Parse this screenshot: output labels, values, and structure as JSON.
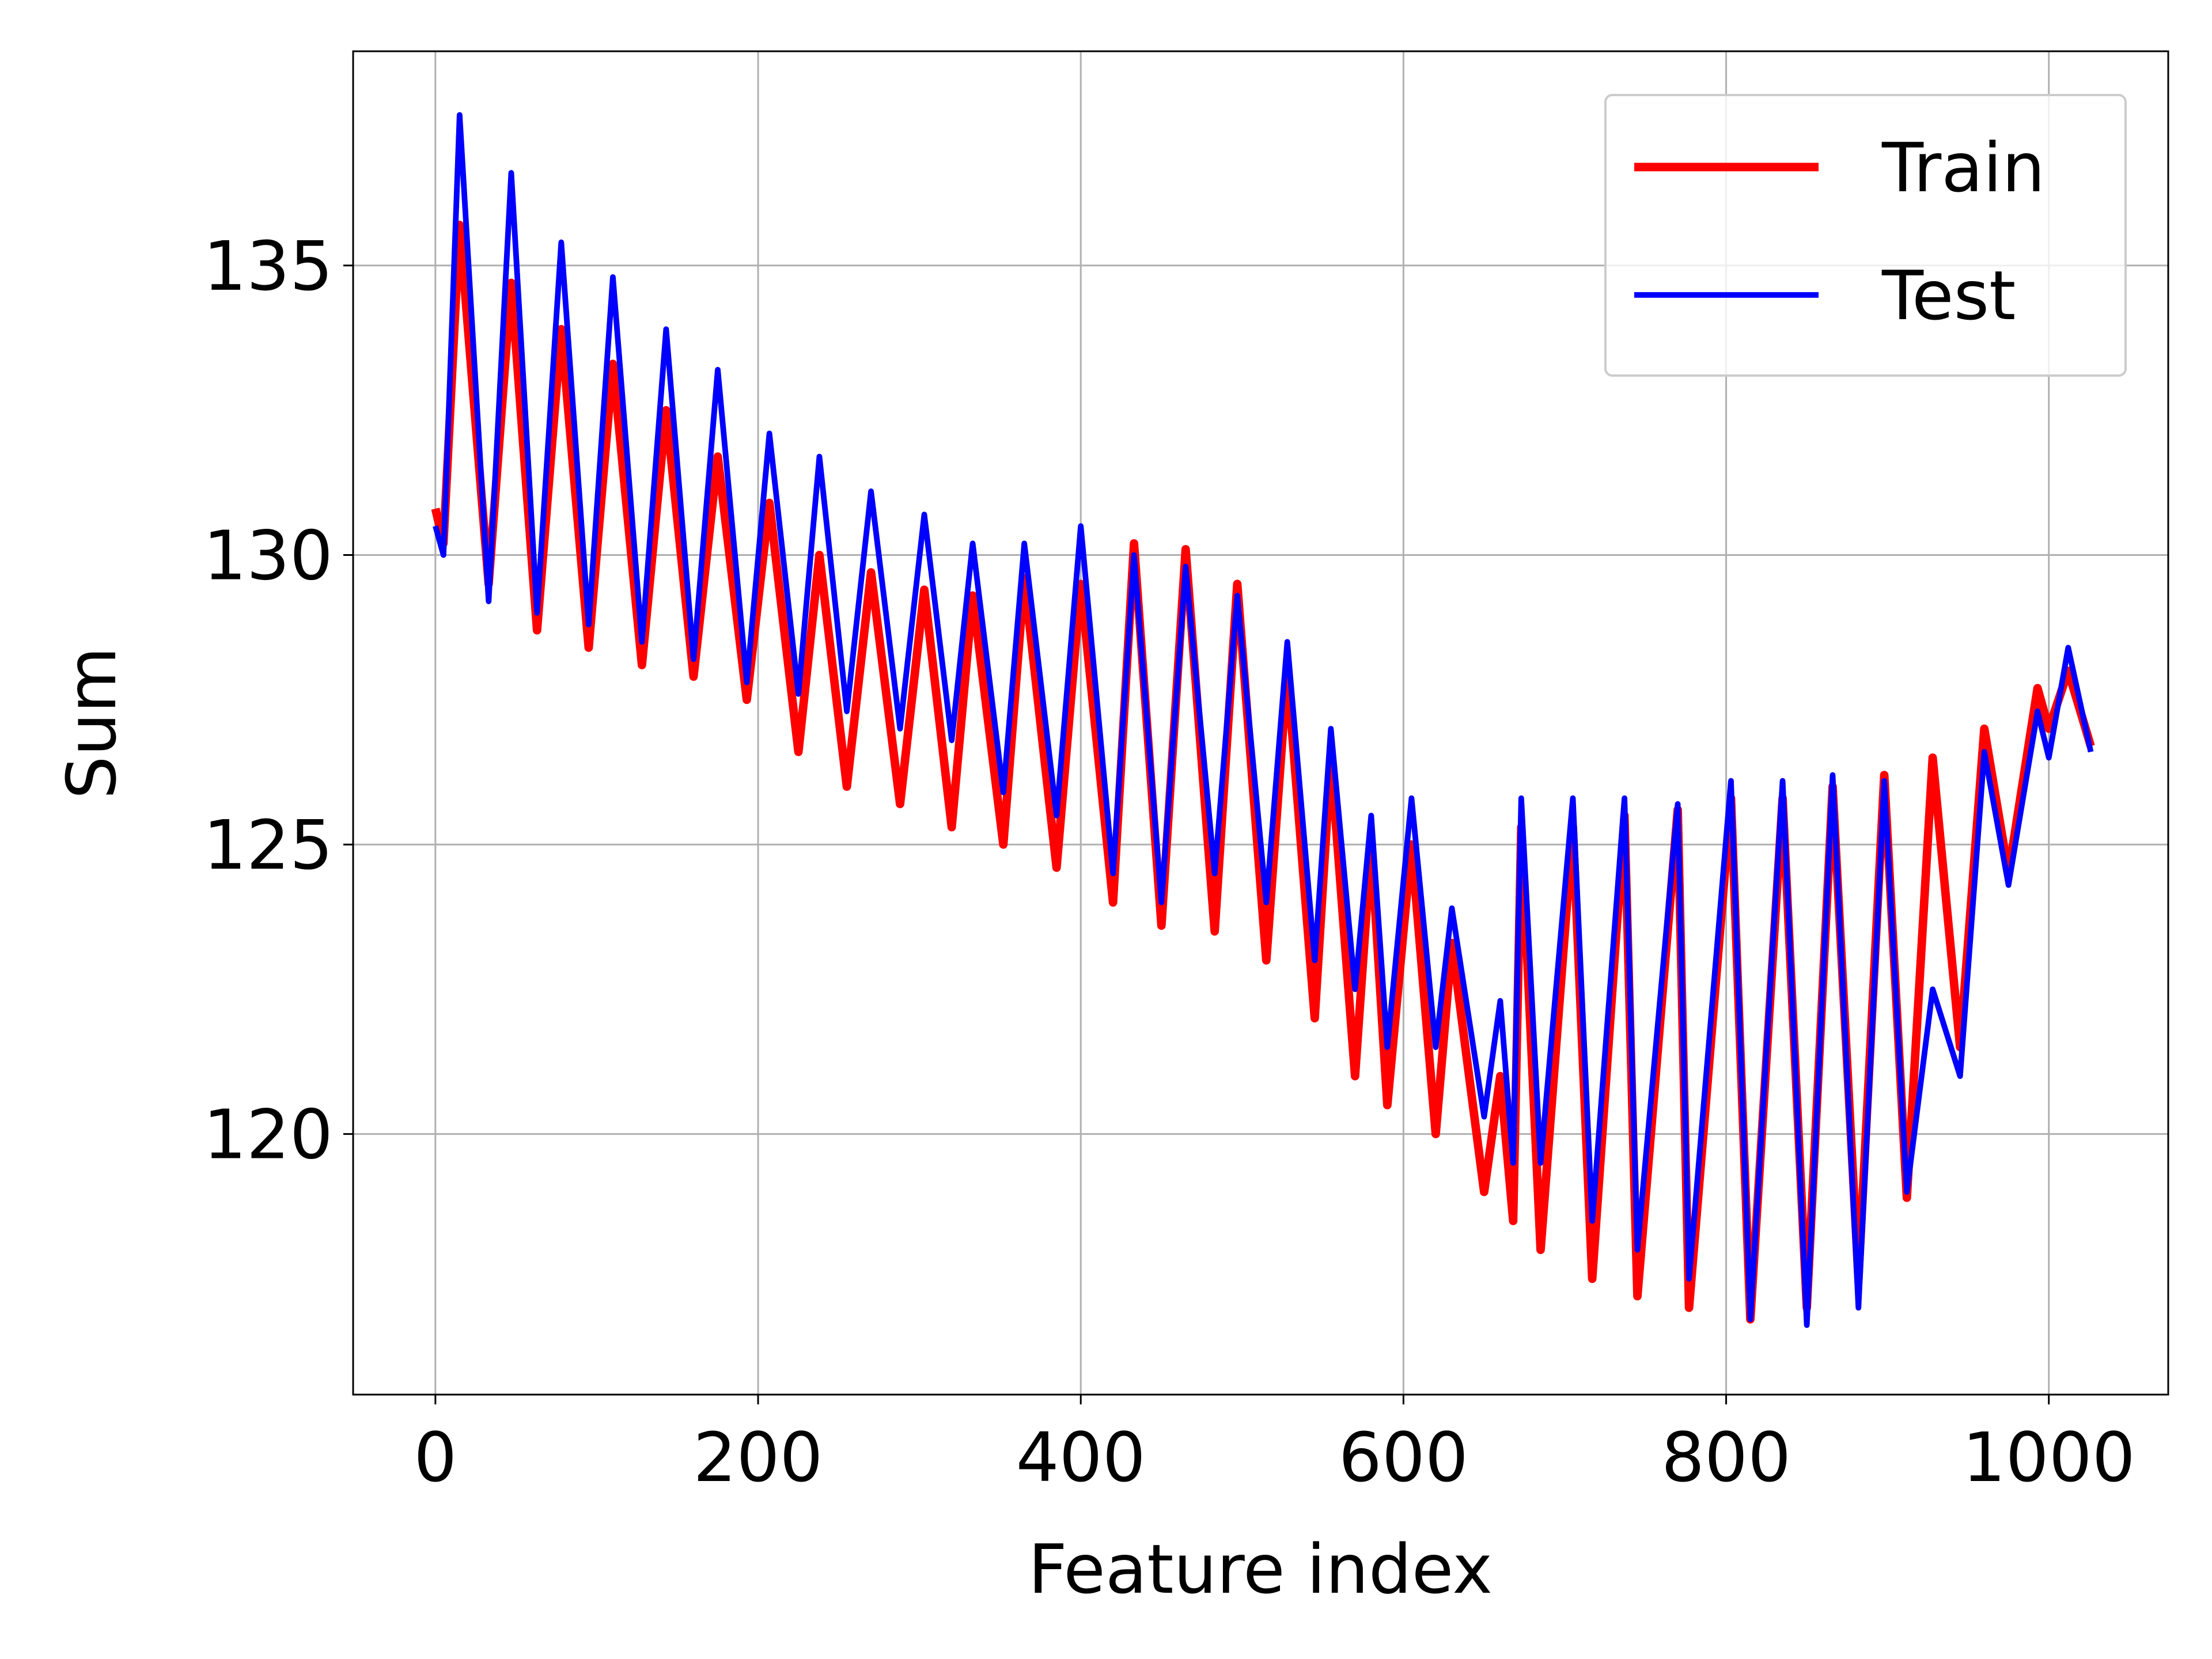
{
  "chart_data": {
    "type": "line",
    "xlabel": "Feature index",
    "ylabel": "Sum",
    "x": [
      0,
      5,
      15,
      33,
      47,
      63,
      78,
      95,
      110,
      128,
      143,
      160,
      175,
      193,
      207,
      225,
      238,
      255,
      270,
      288,
      303,
      320,
      333,
      352,
      365,
      385,
      400,
      420,
      433,
      450,
      465,
      483,
      497,
      515,
      528,
      545,
      555,
      570,
      580,
      590,
      605,
      620,
      630,
      650,
      660,
      668,
      673,
      685,
      705,
      717,
      737,
      745,
      770,
      777,
      803,
      815,
      835,
      850,
      866,
      882,
      898,
      912,
      928,
      945,
      960,
      975,
      993,
      1000,
      1012,
      1026
    ],
    "series": [
      {
        "name": "Train",
        "color": "#ff0000",
        "linewidth": 6,
        "values": [
          130.8,
          130.2,
          135.7,
          129.5,
          134.7,
          128.7,
          133.9,
          128.4,
          133.3,
          128.1,
          132.5,
          127.9,
          131.7,
          127.5,
          130.9,
          126.6,
          130.0,
          126.0,
          129.7,
          125.7,
          129.4,
          125.3,
          129.3,
          125.0,
          129.6,
          124.6,
          129.5,
          124.0,
          130.2,
          123.6,
          130.1,
          123.5,
          129.5,
          123.0,
          128.0,
          122.0,
          126.5,
          121.0,
          125.0,
          120.5,
          125.0,
          120.0,
          123.3,
          119.0,
          121.0,
          118.5,
          125.3,
          118.0,
          125.3,
          117.5,
          125.5,
          117.2,
          125.6,
          117.0,
          125.8,
          116.8,
          125.8,
          117.0,
          126.0,
          117.5,
          126.2,
          118.9,
          126.5,
          121.5,
          127.0,
          124.5,
          127.7,
          127.0,
          128.0,
          126.7
        ]
      },
      {
        "name": "Test",
        "color": "#0000ff",
        "linewidth": 4,
        "values": [
          130.5,
          130.0,
          137.6,
          129.2,
          136.6,
          129.0,
          135.4,
          128.8,
          134.8,
          128.5,
          133.9,
          128.2,
          133.2,
          127.8,
          132.1,
          127.6,
          131.7,
          127.3,
          131.1,
          127.0,
          130.7,
          126.8,
          130.2,
          125.9,
          130.2,
          125.5,
          130.5,
          124.5,
          130.0,
          124.0,
          129.8,
          124.5,
          129.3,
          124.0,
          128.5,
          123.0,
          127.0,
          122.5,
          125.5,
          121.5,
          125.8,
          121.5,
          123.9,
          120.3,
          122.3,
          119.5,
          125.8,
          119.5,
          125.8,
          118.5,
          125.8,
          118.0,
          125.7,
          117.5,
          126.1,
          116.8,
          126.1,
          116.7,
          126.2,
          117.0,
          126.1,
          119.0,
          122.5,
          121.0,
          126.6,
          124.3,
          127.3,
          126.5,
          128.4,
          126.6
        ]
      }
    ],
    "xlim": [
      -51,
      1074
    ],
    "ylim": [
      115.5,
      138.7
    ],
    "xticks": [
      0,
      200,
      400,
      600,
      800,
      1000
    ],
    "yticks": [
      120,
      125,
      130,
      135
    ],
    "grid": true,
    "legend": "upper right"
  }
}
